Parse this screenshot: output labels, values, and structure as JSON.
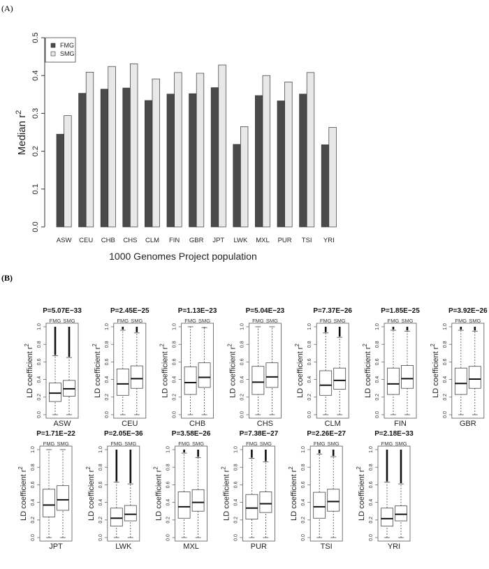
{
  "chart_data": [
    {
      "panel_label": "(A)",
      "type": "bar",
      "title": "",
      "xlabel": "1000 Genomes Project population",
      "ylabel": "Median r",
      "ylabel_superscript": "2",
      "ylim": [
        0,
        0.5
      ],
      "yticks": [
        "0.0",
        "0.1",
        "0.2",
        "0.3",
        "0.4",
        "0.5"
      ],
      "legend": {
        "placement": "top-left",
        "entries": [
          "FMG",
          "SMG"
        ]
      },
      "colors": {
        "FMG": "#4a4a4a",
        "SMG": "#e8e8e8"
      },
      "categories": [
        "ASW",
        "CEU",
        "CHB",
        "CHS",
        "CLM",
        "FIN",
        "GBR",
        "JPT",
        "LWK",
        "MXL",
        "PUR",
        "TSI",
        "YRI"
      ],
      "series": [
        {
          "name": "FMG",
          "values": [
            0.245,
            0.353,
            0.364,
            0.367,
            0.334,
            0.351,
            0.352,
            0.368,
            0.218,
            0.347,
            0.333,
            0.351,
            0.217
          ]
        },
        {
          "name": "SMG",
          "values": [
            0.294,
            0.409,
            0.424,
            0.431,
            0.391,
            0.408,
            0.406,
            0.428,
            0.265,
            0.4,
            0.383,
            0.408,
            0.263
          ]
        }
      ]
    },
    {
      "panel_label": "(B)",
      "type": "boxplot",
      "ylabel": "LD coefficient r",
      "ylabel_superscript": "2",
      "ylim": [
        0,
        1
      ],
      "yticks": [
        "0.0",
        "0.2",
        "0.4",
        "0.6",
        "0.8",
        "1.0"
      ],
      "group_labels": [
        "FMG",
        "SMG"
      ],
      "panels": [
        {
          "pop": "ASW",
          "p": "P=5.07E−33",
          "FMG": {
            "q1": 0.15,
            "median": 0.245,
            "q3": 0.36,
            "whisker_low": 0,
            "whisker_high": 0.67,
            "outliers_to": 1.0
          },
          "SMG": {
            "q1": 0.21,
            "median": 0.295,
            "q3": 0.39,
            "whisker_low": 0,
            "whisker_high": 0.65,
            "outliers_to": 1.0
          }
        },
        {
          "pop": "CEU",
          "p": "P=2.45E−25",
          "FMG": {
            "q1": 0.22,
            "median": 0.35,
            "q3": 0.52,
            "whisker_low": 0,
            "whisker_high": 0.96,
            "outliers_to": 1.0
          },
          "SMG": {
            "q1": 0.3,
            "median": 0.41,
            "q3": 0.555,
            "whisker_low": 0,
            "whisker_high": 0.93,
            "outliers_to": 1.0
          }
        },
        {
          "pop": "CHB",
          "p": "P=1.13E−23",
          "FMG": {
            "q1": 0.23,
            "median": 0.365,
            "q3": 0.545,
            "whisker_low": 0,
            "whisker_high": 1.0,
            "outliers_to": null
          },
          "SMG": {
            "q1": 0.31,
            "median": 0.425,
            "q3": 0.59,
            "whisker_low": 0,
            "whisker_high": 0.99,
            "outliers_to": 1.0
          }
        },
        {
          "pop": "CHS",
          "p": "P=5.04E−23",
          "FMG": {
            "q1": 0.23,
            "median": 0.37,
            "q3": 0.55,
            "whisker_low": 0,
            "whisker_high": 1.0,
            "outliers_to": null
          },
          "SMG": {
            "q1": 0.31,
            "median": 0.43,
            "q3": 0.59,
            "whisker_low": 0,
            "whisker_high": 1.0,
            "outliers_to": null
          }
        },
        {
          "pop": "CLM",
          "p": "P=7.37E−26",
          "FMG": {
            "q1": 0.22,
            "median": 0.335,
            "q3": 0.5,
            "whisker_low": 0,
            "whisker_high": 0.93,
            "outliers_to": 1.0
          },
          "SMG": {
            "q1": 0.29,
            "median": 0.39,
            "q3": 0.53,
            "whisker_low": 0,
            "whisker_high": 0.88,
            "outliers_to": 1.0
          }
        },
        {
          "pop": "FIN",
          "p": "P=1.85E−25",
          "FMG": {
            "q1": 0.23,
            "median": 0.35,
            "q3": 0.53,
            "whisker_low": 0,
            "whisker_high": 0.96,
            "outliers_to": 1.0
          },
          "SMG": {
            "q1": 0.3,
            "median": 0.41,
            "q3": 0.56,
            "whisker_low": 0,
            "whisker_high": 0.95,
            "outliers_to": 1.0
          }
        },
        {
          "pop": "GBR",
          "p": "P=3.92E−26",
          "FMG": {
            "q1": 0.23,
            "median": 0.355,
            "q3": 0.53,
            "whisker_low": 0,
            "whisker_high": 0.96,
            "outliers_to": 1.0
          },
          "SMG": {
            "q1": 0.3,
            "median": 0.405,
            "q3": 0.55,
            "whisker_low": 0,
            "whisker_high": 0.95,
            "outliers_to": 1.0
          }
        },
        {
          "pop": "JPT",
          "p": "P=1.71E−22",
          "FMG": {
            "q1": 0.235,
            "median": 0.37,
            "q3": 0.55,
            "whisker_low": 0,
            "whisker_high": 1.0,
            "outliers_to": null
          },
          "SMG": {
            "q1": 0.31,
            "median": 0.43,
            "q3": 0.59,
            "whisker_low": 0,
            "whisker_high": 1.0,
            "outliers_to": null
          }
        },
        {
          "pop": "LWK",
          "p": "P=2.05E−36",
          "FMG": {
            "q1": 0.13,
            "median": 0.22,
            "q3": 0.335,
            "whisker_low": 0,
            "whisker_high": 0.63,
            "outliers_to": 1.0
          },
          "SMG": {
            "q1": 0.19,
            "median": 0.265,
            "q3": 0.365,
            "whisker_low": 0,
            "whisker_high": 0.61,
            "outliers_to": 1.0
          }
        },
        {
          "pop": "MXL",
          "p": "P=3.58E−26",
          "FMG": {
            "q1": 0.22,
            "median": 0.35,
            "q3": 0.52,
            "whisker_low": 0,
            "whisker_high": 0.96,
            "outliers_to": 1.0
          },
          "SMG": {
            "q1": 0.3,
            "median": 0.4,
            "q3": 0.545,
            "whisker_low": 0,
            "whisker_high": 0.91,
            "outliers_to": 1.0
          }
        },
        {
          "pop": "PUR",
          "p": "P=7.38E−27",
          "FMG": {
            "q1": 0.21,
            "median": 0.335,
            "q3": 0.49,
            "whisker_low": 0,
            "whisker_high": 0.9,
            "outliers_to": 1.0
          },
          "SMG": {
            "q1": 0.285,
            "median": 0.385,
            "q3": 0.52,
            "whisker_low": 0,
            "whisker_high": 0.86,
            "outliers_to": 1.0
          }
        },
        {
          "pop": "TSI",
          "p": "P=2.26E−27",
          "FMG": {
            "q1": 0.22,
            "median": 0.35,
            "q3": 0.515,
            "whisker_low": 0,
            "whisker_high": 0.95,
            "outliers_to": 1.0
          },
          "SMG": {
            "q1": 0.3,
            "median": 0.41,
            "q3": 0.55,
            "whisker_low": 0,
            "whisker_high": 0.92,
            "outliers_to": 1.0
          }
        },
        {
          "pop": "YRI",
          "p": "P=2.18E−33",
          "FMG": {
            "q1": 0.13,
            "median": 0.215,
            "q3": 0.335,
            "whisker_low": 0,
            "whisker_high": 0.63,
            "outliers_to": 1.0
          },
          "SMG": {
            "q1": 0.19,
            "median": 0.265,
            "q3": 0.36,
            "whisker_low": 0,
            "whisker_high": 0.61,
            "outliers_to": 1.0
          }
        }
      ]
    }
  ]
}
